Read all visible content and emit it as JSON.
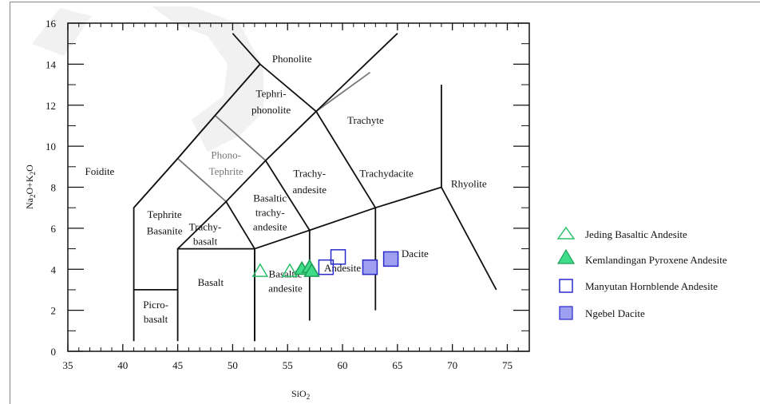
{
  "chart_data": {
    "type": "scatter",
    "xlabel": "SiO",
    "xlabel_sub": "2",
    "ylabel_parts": [
      "Na",
      "2",
      "O+K",
      "2",
      "O"
    ],
    "xlim": [
      35,
      77
    ],
    "ylim": [
      0,
      16
    ],
    "x_ticks": [
      35,
      40,
      45,
      50,
      55,
      60,
      65,
      70,
      75
    ],
    "y_ticks": [
      0,
      2,
      4,
      6,
      8,
      10,
      12,
      14,
      16
    ],
    "grid": false,
    "legend_position": "right",
    "field_boundaries": [
      [
        [
          41,
          0.5
        ],
        [
          41,
          7
        ],
        [
          45,
          9.4
        ],
        [
          48.4,
          11.5
        ],
        [
          52.5,
          14
        ],
        [
          48.4,
          11.5
        ]
      ],
      [
        [
          41,
          3
        ],
        [
          45,
          3
        ]
      ],
      [
        [
          45,
          0.5
        ],
        [
          45,
          5
        ],
        [
          52,
          5
        ],
        [
          52,
          0.5
        ]
      ],
      [
        [
          45,
          5
        ],
        [
          49.4,
          7.3
        ],
        [
          53,
          9.3
        ],
        [
          57.6,
          11.7
        ],
        [
          52.5,
          14
        ],
        [
          50,
          15.5
        ]
      ],
      [
        [
          49.4,
          7.3
        ],
        [
          52,
          5
        ],
        [
          57,
          5.9
        ],
        [
          63,
          7
        ],
        [
          69,
          8
        ]
      ],
      [
        [
          52,
          5
        ],
        [
          52,
          0.5
        ]
      ],
      [
        [
          57,
          5.9
        ],
        [
          57,
          1.5
        ]
      ],
      [
        [
          63,
          7
        ],
        [
          63,
          2
        ]
      ],
      [
        [
          53,
          9.3
        ],
        [
          57,
          5.9
        ]
      ],
      [
        [
          57.6,
          11.7
        ],
        [
          63,
          7
        ]
      ],
      [
        [
          57.6,
          11.7
        ],
        [
          65,
          15.5
        ]
      ],
      [
        [
          69,
          8
        ],
        [
          69,
          13
        ]
      ],
      [
        [
          69,
          8
        ],
        [
          74,
          3
        ]
      ]
    ],
    "gray_boundaries": [
      [
        [
          41,
          7
        ],
        [
          45,
          9.4
        ],
        [
          49.4,
          7.3
        ]
      ],
      [
        [
          45,
          9.4
        ],
        [
          48.4,
          11.5
        ],
        [
          53,
          9.3
        ]
      ],
      [
        [
          53,
          9.3
        ],
        [
          57.6,
          11.7
        ],
        [
          62.5,
          13.6
        ]
      ],
      [
        [
          48.4,
          11.5
        ],
        [
          52.5,
          14
        ]
      ]
    ],
    "field_labels": [
      {
        "text": "Foidite",
        "x": 37.9,
        "y": 8.6,
        "gray": false
      },
      {
        "text": "Phonolite",
        "x": 55.4,
        "y": 14.1,
        "gray": false
      },
      {
        "text": "Tephri-",
        "x": 53.5,
        "y": 12.4,
        "gray": false
      },
      {
        "text": "phonolite",
        "x": 53.5,
        "y": 11.6,
        "gray": false
      },
      {
        "text": "Phono-",
        "x": 49.4,
        "y": 9.4,
        "gray": true
      },
      {
        "text": "Tephrite",
        "x": 49.4,
        "y": 8.6,
        "gray": true
      },
      {
        "text": "Trachyte",
        "x": 62.1,
        "y": 11.1,
        "gray": false
      },
      {
        "text": "Trachy-",
        "x": 57.0,
        "y": 8.5,
        "gray": false
      },
      {
        "text": "andesite",
        "x": 57.0,
        "y": 7.7,
        "gray": false
      },
      {
        "text": "Trachydacite",
        "x": 64.0,
        "y": 8.5,
        "gray": false
      },
      {
        "text": "Tephrite",
        "x": 43.8,
        "y": 6.5,
        "gray": false
      },
      {
        "text": "Basanite",
        "x": 43.8,
        "y": 5.7,
        "gray": false
      },
      {
        "text": "Basaltic",
        "x": 53.4,
        "y": 7.3,
        "gray": false
      },
      {
        "text": "trachy-",
        "x": 53.4,
        "y": 6.6,
        "gray": false
      },
      {
        "text": "andesite",
        "x": 53.4,
        "y": 5.9,
        "gray": false
      },
      {
        "text": "Trachy-",
        "x": 47.5,
        "y": 5.9,
        "gray": false
      },
      {
        "text": "basalt",
        "x": 47.5,
        "y": 5.2,
        "gray": false
      },
      {
        "text": "Rhyolite",
        "x": 71.5,
        "y": 8.0,
        "gray": false
      },
      {
        "text": "Basalt",
        "x": 48.0,
        "y": 3.2,
        "gray": false
      },
      {
        "text": "Basaltic",
        "x": 54.8,
        "y": 3.6,
        "gray": false
      },
      {
        "text": "andesite",
        "x": 54.8,
        "y": 2.9,
        "gray": false
      },
      {
        "text": "Andesite",
        "x": 60.0,
        "y": 3.9,
        "gray": false
      },
      {
        "text": "Dacite",
        "x": 66.6,
        "y": 4.6,
        "gray": false
      },
      {
        "text": "Picro-",
        "x": 43.0,
        "y": 2.1,
        "gray": false
      },
      {
        "text": "basalt",
        "x": 43.0,
        "y": 1.4,
        "gray": false
      }
    ],
    "series": [
      {
        "name": "Jeding Basaltic Andesite",
        "marker": "triangle-open",
        "color": "#2bbf6a",
        "fill": "none",
        "points": [
          [
            52.5,
            3.9
          ],
          [
            55.2,
            3.9
          ]
        ]
      },
      {
        "name": "Kemlandingan Pyroxene Andesite",
        "marker": "triangle-filled",
        "color": "#1e9f55",
        "fill": "#3fdd8a",
        "points": [
          [
            56.3,
            4.0
          ],
          [
            57.0,
            4.1
          ],
          [
            57.2,
            3.9
          ]
        ]
      },
      {
        "name": "Manyutan Hornblende Andesite",
        "marker": "square-open",
        "color": "#2a2acc",
        "fill": "none",
        "points": [
          [
            58.5,
            4.1
          ],
          [
            59.6,
            4.6
          ]
        ]
      },
      {
        "name": "Ngebel Dacite",
        "marker": "square-filled",
        "color": "#2a2acc",
        "fill": "#9f9ff0",
        "points": [
          [
            62.5,
            4.1
          ],
          [
            64.4,
            4.5
          ]
        ]
      }
    ]
  }
}
